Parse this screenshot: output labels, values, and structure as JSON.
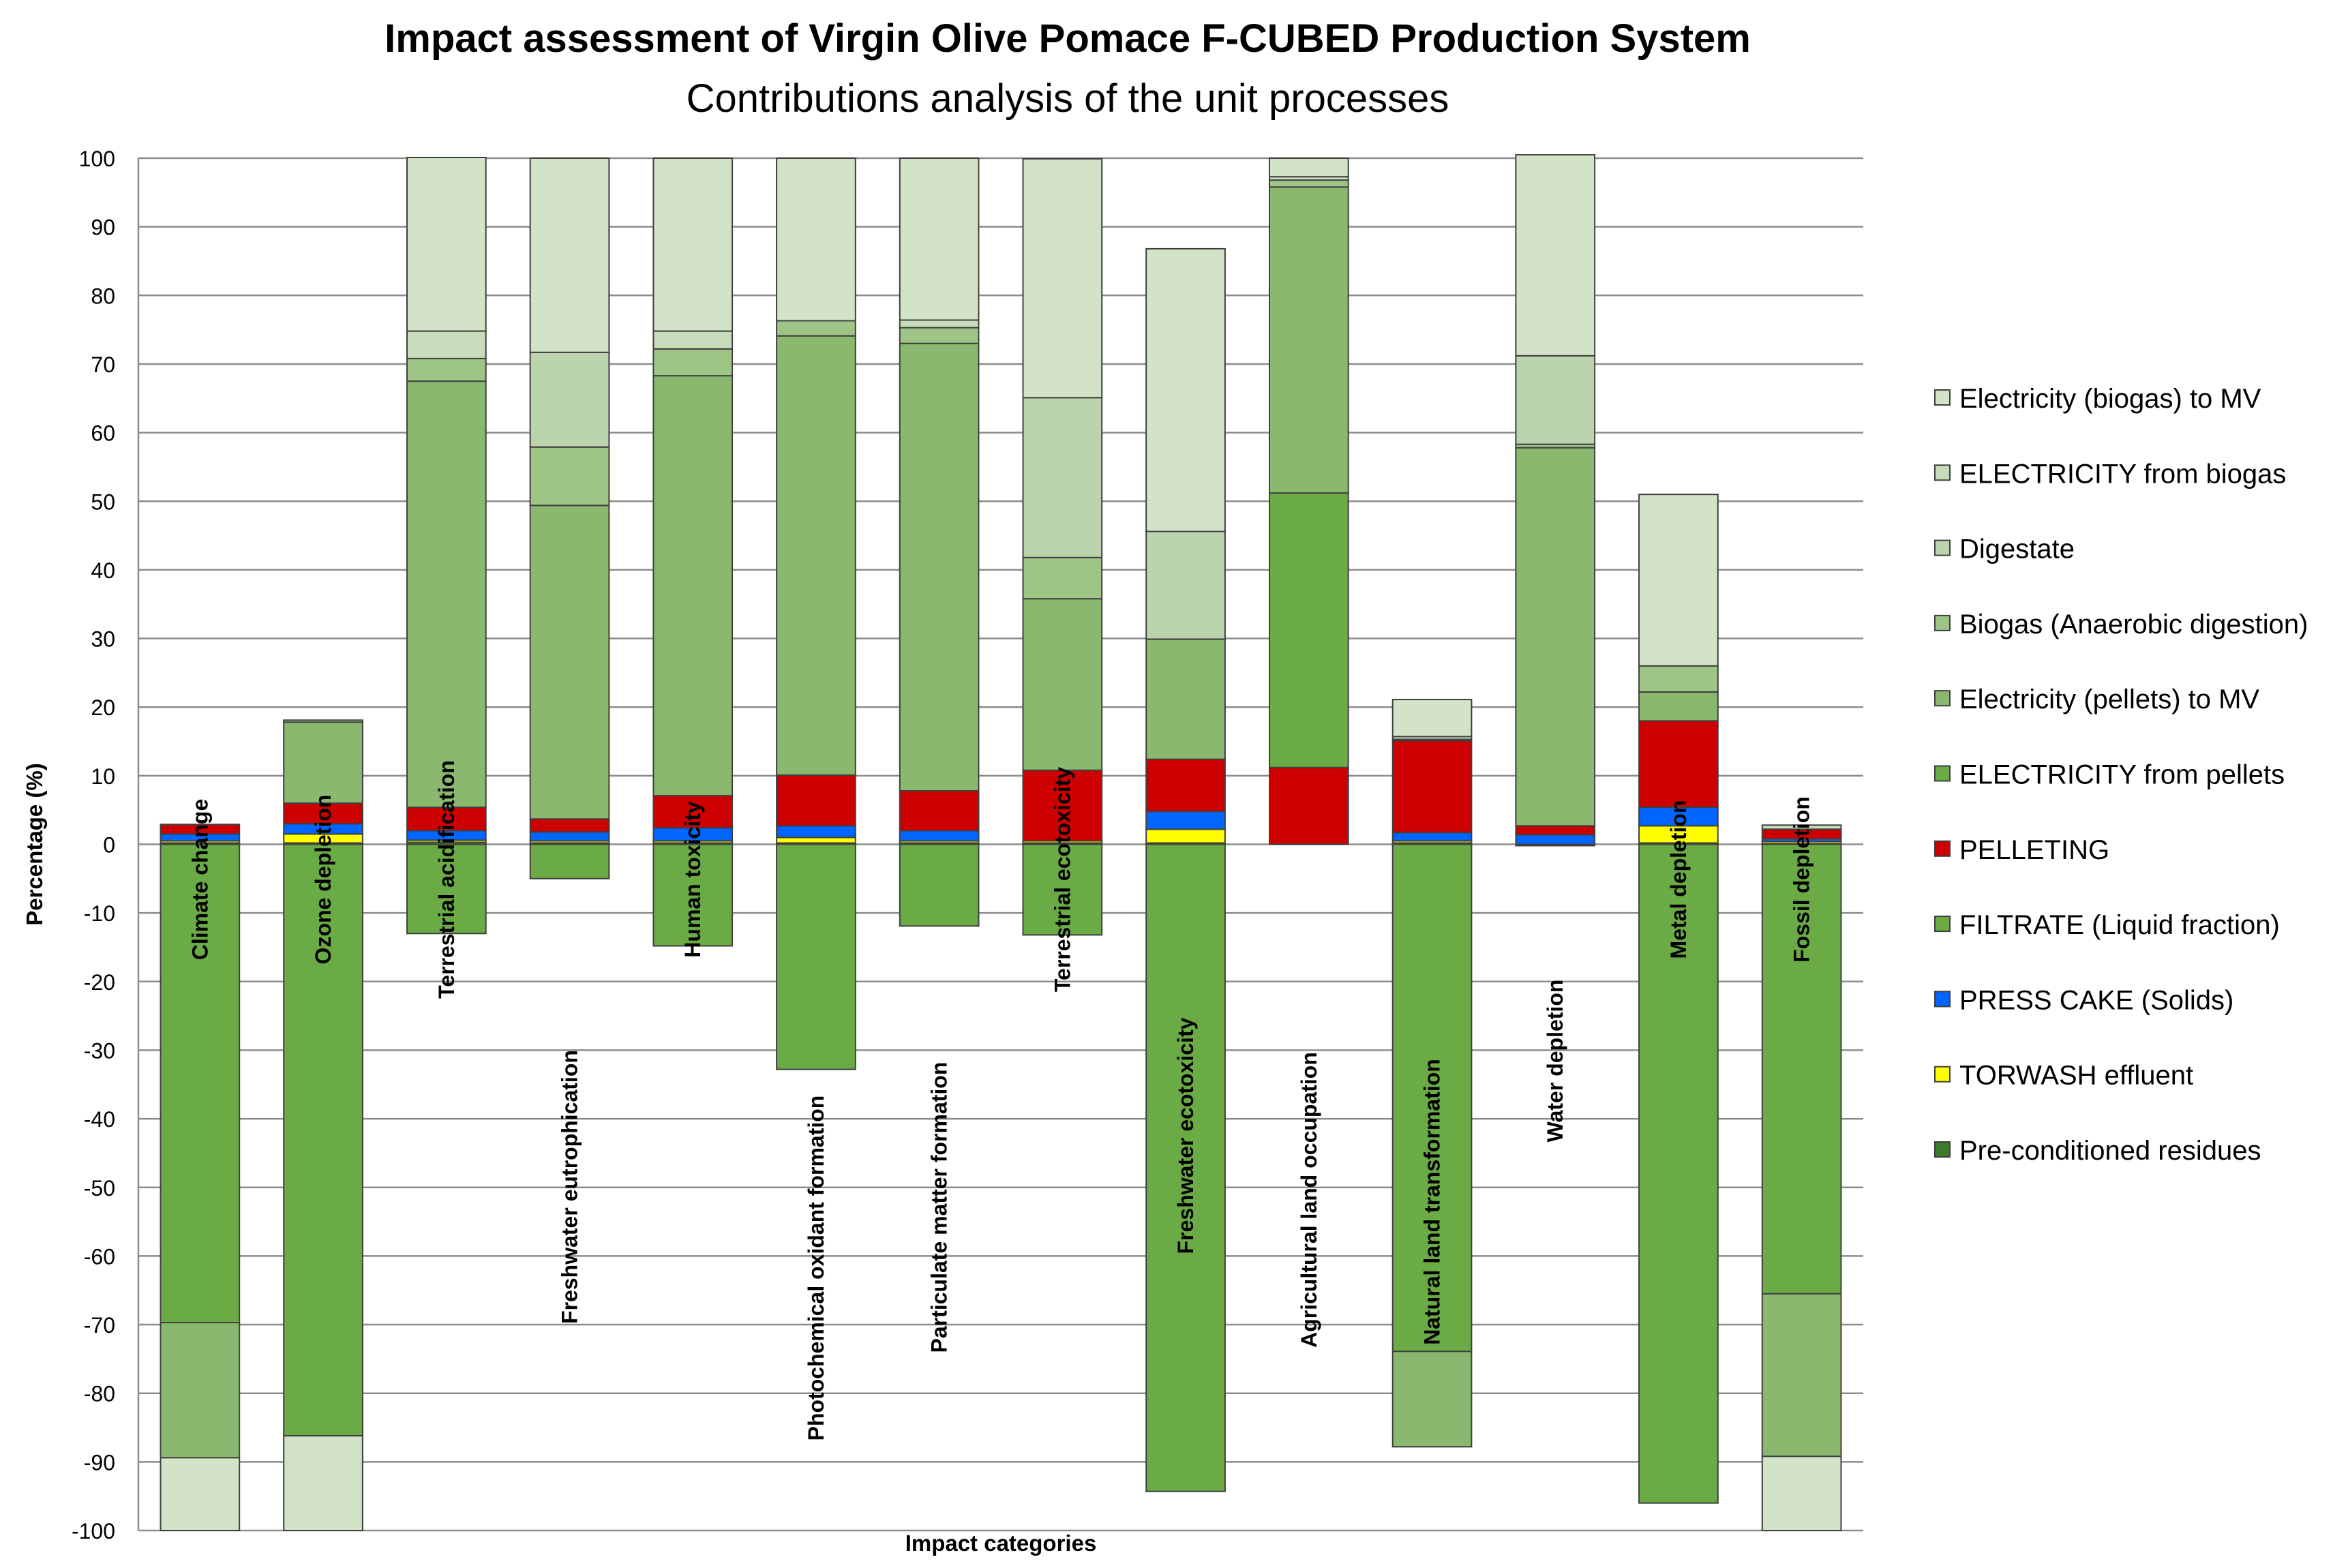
{
  "chart_data": {
    "type": "bar",
    "stacked": true,
    "title": "Impact assessment of Virgin Olive Pomace F-CUBED Production System",
    "subtitle": "Contributions analysis of the unit processes",
    "xlabel": "Impact categories",
    "ylabel": "Percentage (%)",
    "ylim": [
      -100,
      100
    ],
    "yticks": [
      100,
      90,
      80,
      70,
      60,
      50,
      40,
      30,
      20,
      10,
      0,
      -10,
      -20,
      -30,
      -40,
      -50,
      -60,
      -70,
      -80,
      -90,
      -100
    ],
    "grid": true,
    "legend_position": "right",
    "categories": [
      "Climate change",
      "Ozone depletion",
      "Terrestrial acidification",
      "Freshwater eutrophication",
      "Human toxicity",
      "Photochemical oxidant formation",
      "Particulate matter formation",
      "Terrestrial ecotoxicity",
      "Freshwater ecotoxicity",
      "Agricultural land occupation",
      "Natural land transformation",
      "Water depletion",
      "Metal depletion",
      "Fossil depletion"
    ],
    "series": [
      {
        "name": "Pre-conditioned residues",
        "color": "#3C7A2C",
        "values": [
          0.2,
          0.2,
          0.3,
          0.2,
          0.2,
          0.2,
          0.2,
          0.2,
          0.2,
          0,
          0.2,
          0,
          0.2,
          0.1
        ]
      },
      {
        "name": "TORWASH effluent",
        "color": "#FFFF00",
        "values": [
          0.3,
          1.3,
          0.3,
          0.3,
          0.3,
          0.8,
          0.3,
          0.3,
          2.0,
          0,
          0.3,
          0,
          2.5,
          0.3
        ]
      },
      {
        "name": "PRESS CAKE (Solids)",
        "color": "#0066FF",
        "values": [
          1.0,
          1.5,
          1.4,
          1.3,
          1.9,
          1.7,
          1.5,
          0,
          2.6,
          0,
          1.2,
          1.4,
          2.7,
          0.4
        ]
      },
      {
        "name": "FILTRATE (Liquid fraction)",
        "color": "#6AAB45",
        "values": [
          -69.7,
          -86.2,
          -13.0,
          -5.0,
          -14.8,
          -32.8,
          -11.9,
          -13.2,
          -94.3,
          0,
          -73.9,
          -0.2,
          -96.0,
          -65.5
        ]
      },
      {
        "name": "PELLETING",
        "color": "#CC0000",
        "values": [
          1.4,
          3.0,
          3.4,
          1.9,
          4.7,
          7.4,
          5.8,
          10.3,
          7.6,
          11.2,
          13.4,
          1.3,
          12.6,
          1.4
        ]
      },
      {
        "name": "ELECTRICITY from pellets",
        "color": "#6AAB45",
        "values": [
          0,
          0,
          0,
          0,
          0,
          0,
          0,
          0,
          0,
          40.0,
          0,
          0,
          0,
          0
        ]
      },
      {
        "name": "Electricity (pellets) to MV",
        "color": "#8AB86E",
        "values": [
          -19.7,
          11.8,
          62.1,
          45.7,
          61.2,
          64.0,
          65.2,
          25.0,
          17.5,
          44.6,
          -13.9,
          55.1,
          4.2,
          -23.7
        ]
      },
      {
        "name": "Biogas (Anaerobic digestion)",
        "color": "#9EC586",
        "values": [
          0,
          0.3,
          3.3,
          8.5,
          3.9,
          2.2,
          2.3,
          6.0,
          0,
          1.0,
          0.2,
          0.5,
          3.8,
          0
        ]
      },
      {
        "name": "Digestate",
        "color": "#BCD4AE",
        "values": [
          0,
          0,
          0,
          13.8,
          0,
          0,
          0,
          23.3,
          15.7,
          0,
          0,
          12.9,
          0,
          0
        ]
      },
      {
        "name": "ELECTRICITY from biogas",
        "color": "#C7DCBB",
        "values": [
          0,
          0,
          4.0,
          0,
          2.6,
          0,
          1.1,
          0,
          0,
          0.5,
          0.4,
          0,
          0,
          0.6
        ]
      },
      {
        "name": "Electricity (biogas) to MV",
        "color": "#D3E3C8",
        "values": [
          -10.6,
          -13.8,
          25.3,
          28.3,
          25.2,
          23.7,
          23.6,
          34.8,
          41.2,
          2.7,
          5.4,
          29.3,
          25.0,
          -10.8
        ]
      }
    ]
  }
}
